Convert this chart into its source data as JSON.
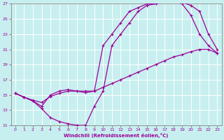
{
  "xlabel": "Windchill (Refroidissement éolien,°C)",
  "bg_color": "#c8efef",
  "grid_color": "#ffffff",
  "line_color": "#990099",
  "xlim": [
    -0.5,
    23.5
  ],
  "ylim": [
    11,
    27
  ],
  "yticks": [
    11,
    13,
    15,
    17,
    19,
    21,
    23,
    25,
    27
  ],
  "xticks": [
    0,
    1,
    2,
    3,
    4,
    5,
    6,
    7,
    8,
    9,
    10,
    11,
    12,
    13,
    14,
    15,
    16,
    17,
    18,
    19,
    20,
    21,
    22,
    23
  ],
  "line1_x": [
    0,
    1,
    2,
    3,
    4,
    5,
    6,
    7,
    8,
    9,
    10,
    11,
    12,
    13,
    14,
    15,
    16,
    17,
    18,
    19,
    20,
    21,
    22,
    23
  ],
  "line1_y": [
    15.2,
    14.7,
    14.3,
    14.0,
    14.8,
    15.2,
    15.5,
    15.5,
    15.5,
    15.5,
    16.0,
    16.5,
    17.0,
    17.5,
    18.0,
    18.5,
    19.0,
    19.5,
    20.0,
    20.3,
    20.7,
    21.0,
    21.0,
    20.5
  ],
  "line2_x": [
    0,
    1,
    2,
    3,
    4,
    5,
    6,
    7,
    8,
    9,
    10,
    11,
    12,
    13,
    14,
    15,
    16,
    17,
    18,
    19,
    20,
    21,
    22,
    23
  ],
  "line2_y": [
    15.2,
    14.7,
    14.2,
    13.2,
    12.0,
    11.5,
    11.2,
    11.0,
    11.0,
    13.5,
    15.5,
    21.5,
    23.0,
    24.5,
    26.0,
    26.8,
    27.0,
    27.3,
    27.3,
    27.0,
    25.5,
    23.0,
    21.5,
    20.5
  ],
  "line3_x": [
    0,
    1,
    2,
    3,
    4,
    5,
    6,
    7,
    8,
    9,
    10,
    11,
    12,
    13,
    14,
    15,
    16,
    17,
    18,
    19,
    20,
    21,
    22,
    23
  ],
  "line3_y": [
    15.2,
    14.7,
    14.2,
    13.5,
    15.0,
    15.5,
    15.7,
    15.5,
    15.3,
    15.5,
    21.5,
    23.0,
    24.5,
    26.0,
    26.5,
    27.0,
    27.0,
    27.5,
    27.5,
    27.2,
    26.8,
    26.0,
    23.0,
    21.0
  ]
}
